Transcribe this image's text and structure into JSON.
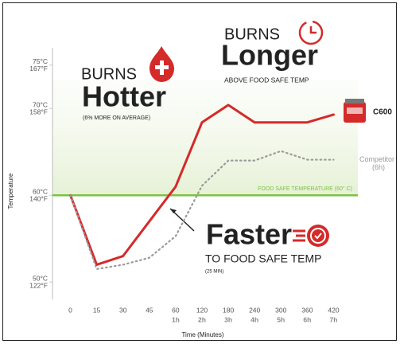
{
  "chart_data": {
    "type": "line",
    "categories": [
      "0",
      "15",
      "30",
      "45",
      "60",
      "120",
      "180",
      "240",
      "300",
      "360",
      "420"
    ],
    "x_sublabels": [
      null,
      null,
      null,
      null,
      "1h",
      "2h",
      "3h",
      "4h",
      "5h",
      "6h",
      "7h"
    ],
    "x_label": "Time (Minutes)",
    "y_label": "Temperature",
    "ylim": [
      48,
      77
    ],
    "yticks": [
      {
        "value": 50,
        "label": "50°C"
      },
      {
        "value": 60,
        "label": "60°C"
      },
      {
        "value": 70,
        "label": "70°C"
      },
      {
        "value": 75,
        "label": "75°C"
      }
    ],
    "y_sublabels": [
      "122°F",
      "140°F",
      "158°F",
      "167°F"
    ],
    "series": [
      {
        "name": "C600",
        "color": "#d42a2a",
        "values": [
          60,
          52,
          53,
          57,
          61,
          68.4,
          70.4,
          68.4,
          68.4,
          68.4,
          69.3
        ]
      },
      {
        "name": "Competitor",
        "note": "(6h)",
        "color": "#9a9a9a",
        "values": [
          60,
          51.5,
          52,
          52.8,
          55.3,
          61.1,
          64,
          64,
          65.1,
          64.1,
          64.1
        ]
      }
    ],
    "reference_line": {
      "value": 60,
      "label": "FOOD SAFE TEMPERATURE (60° C)",
      "color": "#7cc242"
    },
    "annotations": {
      "hotter": {
        "kicker": "BURNS",
        "headline": "Hotter",
        "detail": "(6% MORE ON AVERAGE)"
      },
      "longer": {
        "kicker": "BURNS",
        "headline": "Longer",
        "detail": "ABOVE FOOD SAFE TEMP"
      },
      "faster": {
        "headline": "Faster",
        "detail": "TO FOOD SAFE TEMP",
        "note": "(25 MIN)"
      }
    }
  }
}
